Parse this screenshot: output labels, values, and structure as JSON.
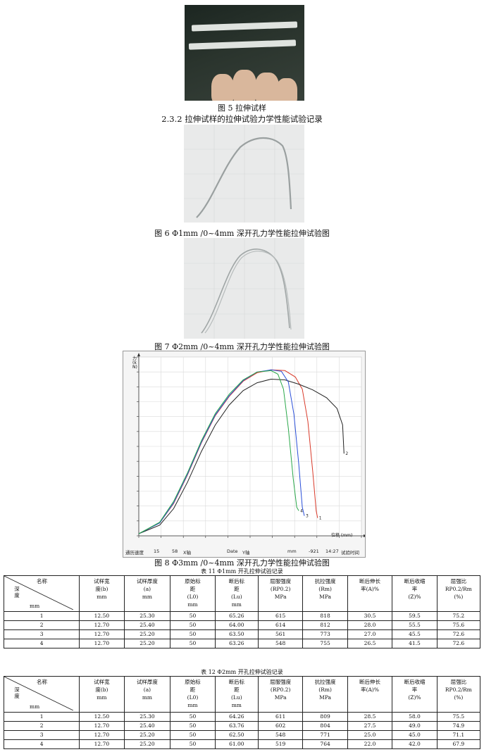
{
  "fig5": {
    "caption": "图 5 拉伸试样"
  },
  "section_heading": "2.3.2 拉伸试样的拉伸试验力学性能试验记录",
  "fig6": {
    "caption": "图 6 Φ1mm /0~4mm 深开孔力学性能拉伸试验图"
  },
  "fig7": {
    "caption": "图 7 Φ2mm /0~4mm 深开孔力学性能拉伸试验图"
  },
  "fig8": {
    "caption": "图 8 Φ3mm /0~4mm 深开孔力学性能拉伸试验图",
    "y_axis_label": "力 (kN)",
    "x_axis_label": "位移 (mm)",
    "curve_labels": [
      "2",
      "1",
      "3",
      "4"
    ],
    "status_bar": {
      "speed_label": "通历速度",
      "speed_value": "15",
      "v2": "58",
      "axis_label": "X轴",
      "date_label": "Date",
      "date_axis": "Y轴",
      "unit": "mm",
      "value": "-921",
      "time": "14:27",
      "time_label": "试验时间"
    }
  },
  "chart_data": {
    "type": "line",
    "title": "",
    "xlabel": "位移 (mm)",
    "ylabel": "力 (kN)",
    "x_range": [
      0,
      32
    ],
    "y_range": [
      0,
      25
    ],
    "grid": true,
    "series": [
      {
        "name": "1",
        "color": "#d93a2a",
        "points": [
          [
            0,
            0.3
          ],
          [
            3,
            1.8
          ],
          [
            5,
            4.5
          ],
          [
            7,
            8.5
          ],
          [
            9,
            13
          ],
          [
            11,
            16.8
          ],
          [
            13,
            19.5
          ],
          [
            15,
            21.6
          ],
          [
            17,
            22.8
          ],
          [
            19,
            23.2
          ],
          [
            21,
            23.1
          ],
          [
            22.5,
            22.2
          ],
          [
            23.5,
            20.5
          ],
          [
            24.3,
            16
          ],
          [
            25,
            9
          ],
          [
            25.5,
            3.5
          ],
          [
            25.7,
            2.5
          ]
        ]
      },
      {
        "name": "2",
        "color": "#222222",
        "points": [
          [
            0,
            0.3
          ],
          [
            3,
            1.5
          ],
          [
            5,
            3.8
          ],
          [
            7,
            7.5
          ],
          [
            9,
            11.8
          ],
          [
            11,
            15.5
          ],
          [
            13,
            18.3
          ],
          [
            15,
            20.3
          ],
          [
            17,
            21.4
          ],
          [
            19,
            21.9
          ],
          [
            21,
            21.8
          ],
          [
            23,
            21.2
          ],
          [
            25,
            20.4
          ],
          [
            27,
            19.3
          ],
          [
            28.5,
            17.8
          ],
          [
            29.3,
            15.5
          ],
          [
            29.5,
            11.5
          ]
        ]
      },
      {
        "name": "3",
        "color": "#2a4fd9",
        "points": [
          [
            0,
            0.3
          ],
          [
            3,
            1.8
          ],
          [
            5,
            4.6
          ],
          [
            7,
            8.6
          ],
          [
            9,
            13.1
          ],
          [
            11,
            16.9
          ],
          [
            13,
            19.6
          ],
          [
            15,
            21.7
          ],
          [
            17,
            22.9
          ],
          [
            19,
            23.2
          ],
          [
            20.5,
            23
          ],
          [
            21.5,
            21.5
          ],
          [
            22.3,
            17
          ],
          [
            23,
            10
          ],
          [
            23.5,
            4
          ],
          [
            23.8,
            2.8
          ]
        ]
      },
      {
        "name": "4",
        "color": "#2aa84a",
        "points": [
          [
            0,
            0.3
          ],
          [
            3,
            1.9
          ],
          [
            5,
            4.8
          ],
          [
            7,
            8.8
          ],
          [
            9,
            13.3
          ],
          [
            11,
            17.1
          ],
          [
            13,
            19.8
          ],
          [
            15,
            21.8
          ],
          [
            17,
            22.9
          ],
          [
            19,
            23.1
          ],
          [
            20,
            22.6
          ],
          [
            20.8,
            20.5
          ],
          [
            21.5,
            15
          ],
          [
            22.2,
            8
          ],
          [
            22.7,
            4
          ],
          [
            23,
            3.5
          ]
        ]
      }
    ]
  },
  "table11": {
    "caption": "表 11 Φ1mm 开孔拉伸试验记录",
    "corner": {
      "name": "名称",
      "depth": "深度",
      "unit": "mm"
    },
    "headers": [
      [
        "试样宽",
        "度(b)",
        "mm"
      ],
      [
        "试样厚度",
        "(a)",
        "mm"
      ],
      [
        "原始标",
        "距",
        "(L0)",
        "mm"
      ],
      [
        "断后标",
        "距",
        "(Lu)",
        "mm"
      ],
      [
        "屈服强度",
        "(RP0.2)",
        "MPa"
      ],
      [
        "抗拉强度",
        "(Rm)",
        "MPa"
      ],
      [
        "断后伸长",
        "率(A)%"
      ],
      [
        "断后收缩",
        "率",
        "(Z)%"
      ],
      [
        "屈强比",
        "RP0.2/Rm",
        "(%)"
      ]
    ],
    "rows": [
      [
        "1",
        "12.50",
        "25.30",
        "50",
        "65.26",
        "615",
        "818",
        "30.5",
        "59.5",
        "75.2"
      ],
      [
        "2",
        "12.70",
        "25.40",
        "50",
        "64.00",
        "614",
        "812",
        "28.0",
        "55.5",
        "75.6"
      ],
      [
        "3",
        "12.70",
        "25.20",
        "50",
        "63.50",
        "561",
        "773",
        "27.0",
        "45.5",
        "72.6"
      ],
      [
        "4",
        "12.70",
        "25.20",
        "50",
        "63.26",
        "548",
        "755",
        "26.5",
        "41.5",
        "72.6"
      ]
    ]
  },
  "table12": {
    "caption": "表 12 Φ2mm 开孔拉伸试验记录",
    "corner": {
      "name": "名称",
      "depth": "深度",
      "unit": "mm"
    },
    "headers": [
      [
        "试样宽",
        "度(b)",
        "mm"
      ],
      [
        "试样厚度",
        "(a)",
        "mm"
      ],
      [
        "原始标",
        "距",
        "(L0)",
        "mm"
      ],
      [
        "断后标",
        "距",
        "(Lu)",
        "mm"
      ],
      [
        "屈服强度",
        "(RP0.2)",
        "MPa"
      ],
      [
        "抗拉强度",
        "(Rm)",
        "MPa"
      ],
      [
        "断后伸长",
        "率(A)%"
      ],
      [
        "断后收缩",
        "率",
        "(Z)%"
      ],
      [
        "屈强比",
        "RP0.2/Rm",
        "(%)"
      ]
    ],
    "rows": [
      [
        "1",
        "12.50",
        "25.30",
        "50",
        "64.26",
        "611",
        "809",
        "28.5",
        "58.0",
        "75.5"
      ],
      [
        "2",
        "12.70",
        "25.40",
        "50",
        "63.76",
        "602",
        "804",
        "27.5",
        "49.0",
        "74.9"
      ],
      [
        "3",
        "12.70",
        "25.20",
        "50",
        "62.50",
        "548",
        "771",
        "25.0",
        "45.0",
        "71.1"
      ],
      [
        "4",
        "12.70",
        "25.20",
        "50",
        "61.00",
        "519",
        "764",
        "22.0",
        "42.0",
        "67.9"
      ]
    ]
  }
}
